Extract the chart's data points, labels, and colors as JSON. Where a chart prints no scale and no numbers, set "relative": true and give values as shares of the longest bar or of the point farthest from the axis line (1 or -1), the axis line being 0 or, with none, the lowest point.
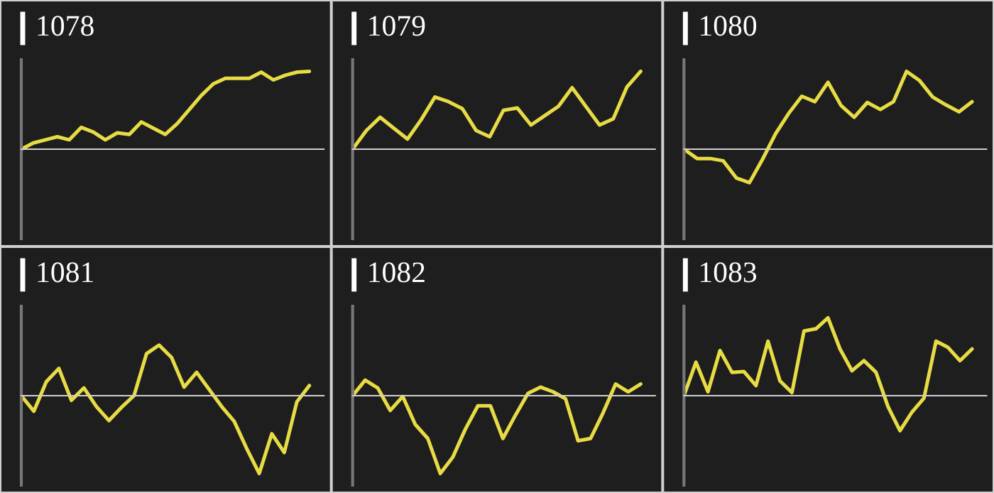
{
  "chart_data": [
    {
      "type": "line",
      "title": "1078",
      "relative": true,
      "categories": [
        null,
        null,
        null,
        null,
        null,
        null,
        null,
        null,
        null,
        null,
        null,
        null,
        null,
        null,
        null,
        null,
        null,
        null,
        null,
        null,
        null,
        null,
        null,
        null,
        null
      ],
      "series": [
        {
          "color": "#e8dc45",
          "values": [
            0,
            0.08,
            0.12,
            0.16,
            0.12,
            0.28,
            0.22,
            0.12,
            0.21,
            0.19,
            0.35,
            0.27,
            0.19,
            0.33,
            0.51,
            0.69,
            0.84,
            0.91,
            0.91,
            0.91,
            0.99,
            0.89,
            0.95,
            0.99,
            1
          ]
        }
      ]
    },
    {
      "type": "line",
      "title": "1079",
      "relative": true,
      "categories": [
        null,
        null,
        null,
        null,
        null,
        null,
        null,
        null,
        null,
        null,
        null,
        null,
        null,
        null,
        null,
        null,
        null,
        null,
        null,
        null,
        null,
        null
      ],
      "series": [
        {
          "color": "#e8dc45",
          "values": [
            0,
            0.24,
            0.41,
            0.27,
            0.13,
            0.38,
            0.67,
            0.61,
            0.52,
            0.24,
            0.16,
            0.5,
            0.53,
            0.31,
            0.43,
            0.55,
            0.79,
            0.55,
            0.31,
            0.39,
            0.8,
            1
          ]
        }
      ]
    },
    {
      "type": "line",
      "title": "1080",
      "relative": true,
      "categories": [
        null,
        null,
        null,
        null,
        null,
        null,
        null,
        null,
        null,
        null,
        null,
        null,
        null,
        null,
        null,
        null,
        null,
        null,
        null,
        null,
        null,
        null,
        null
      ],
      "series": [
        {
          "color": "#e8dc45",
          "values": [
            0,
            -0.12,
            -0.12,
            -0.15,
            -0.37,
            -0.43,
            -0.13,
            0.2,
            0.46,
            0.68,
            0.61,
            0.86,
            0.56,
            0.41,
            0.6,
            0.51,
            0.61,
            1,
            0.88,
            0.67,
            0.57,
            0.48,
            0.61
          ]
        }
      ]
    },
    {
      "type": "line",
      "title": "1081",
      "relative": true,
      "categories": [
        null,
        null,
        null,
        null,
        null,
        null,
        null,
        null,
        null,
        null,
        null,
        null,
        null,
        null,
        null,
        null,
        null,
        null,
        null,
        null,
        null,
        null,
        null,
        null
      ],
      "series": [
        {
          "color": "#e8dc45",
          "values": [
            0,
            -0.2,
            0.18,
            0.35,
            -0.06,
            0.1,
            -0.14,
            -0.32,
            -0.15,
            0,
            0.54,
            0.65,
            0.49,
            0.11,
            0.3,
            0.08,
            -0.14,
            -0.33,
            -0.68,
            -1,
            -0.49,
            -0.73,
            -0.08,
            0.13
          ]
        }
      ]
    },
    {
      "type": "line",
      "title": "1082",
      "relative": true,
      "categories": [
        null,
        null,
        null,
        null,
        null,
        null,
        null,
        null,
        null,
        null,
        null,
        null,
        null,
        null,
        null,
        null,
        null,
        null,
        null,
        null,
        null,
        null,
        null,
        null
      ],
      "series": [
        {
          "color": "#e8dc45",
          "values": [
            0,
            0.2,
            0.1,
            -0.19,
            -0.01,
            -0.37,
            -0.55,
            -1,
            -0.79,
            -0.43,
            -0.13,
            -0.13,
            -0.55,
            -0.25,
            0.03,
            0.11,
            0.05,
            -0.04,
            -0.58,
            -0.55,
            -0.22,
            0.15,
            0.05,
            0.15
          ]
        }
      ]
    },
    {
      "type": "line",
      "title": "1083",
      "relative": true,
      "categories": [
        null,
        null,
        null,
        null,
        null,
        null,
        null,
        null,
        null,
        null,
        null,
        null,
        null,
        null,
        null,
        null,
        null,
        null,
        null,
        null,
        null,
        null,
        null,
        null,
        null
      ],
      "series": [
        {
          "color": "#e8dc45",
          "values": [
            0,
            0.43,
            0.05,
            0.58,
            0.3,
            0.31,
            0.13,
            0.7,
            0.19,
            0.04,
            0.83,
            0.86,
            1,
            0.6,
            0.32,
            0.45,
            0.3,
            -0.14,
            -0.45,
            -0.21,
            -0.03,
            0.7,
            0.62,
            0.45,
            0.6
          ]
        }
      ]
    }
  ]
}
